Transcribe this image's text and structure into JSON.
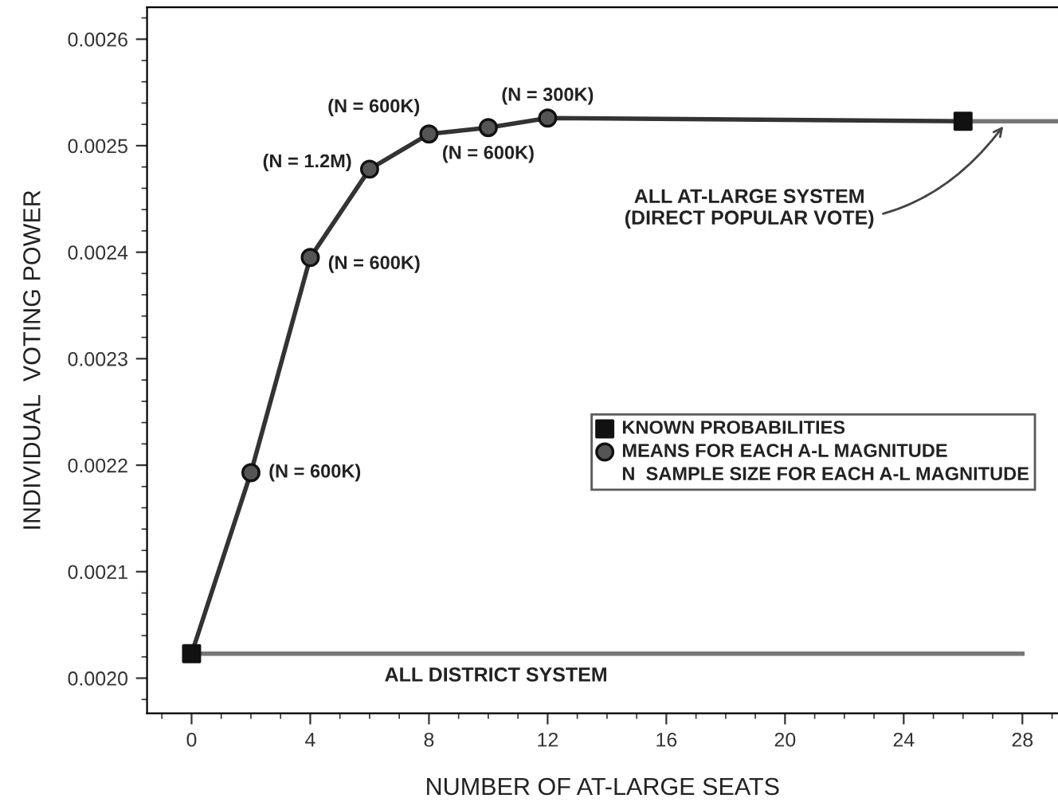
{
  "chart_data": {
    "type": "line",
    "xlabel": "NUMBER OF AT-LARGE SEATS",
    "ylabel": "INDIVIDUAL  VOTING POWER",
    "xlim": [
      -1.5,
      29.2
    ],
    "ylim": [
      0.001967,
      0.00263
    ],
    "xticks": [
      0,
      4,
      8,
      12,
      16,
      20,
      24,
      28
    ],
    "yticks": [
      {
        "value": 0.002,
        "label": "0.0020"
      },
      0.0021,
      0.0022,
      0.0023,
      0.0024,
      0.0025,
      0.0026
    ],
    "grid": false,
    "legend": "right",
    "series": [
      {
        "color": "#333333",
        "marker": "none",
        "x": [
          0,
          2,
          4,
          6,
          8,
          10,
          12,
          26
        ],
        "values": [
          0.002023,
          0.002193,
          0.002395,
          0.002478,
          0.002511,
          0.002517,
          0.002526,
          0.002523
        ]
      },
      {
        "color": "#777777",
        "marker": "none",
        "x": [
          26,
          29.2
        ],
        "values": [
          0.002523,
          0.002523
        ]
      },
      {
        "color": "#777777",
        "marker": "none",
        "x": [
          0,
          28
        ],
        "values": [
          0.002023,
          0.002023
        ]
      },
      {
        "type": "scatter",
        "name": "KNOWN PROBABILITIES",
        "color": "#111111",
        "marker": "square",
        "x": [
          0,
          26
        ],
        "values": [
          0.002023,
          0.002523
        ]
      },
      {
        "type": "scatter",
        "name": "MEANS FOR EACH A-L MAGNITUDE",
        "color": "#555555",
        "marker": "circle",
        "x": [
          2,
          4,
          6,
          8,
          10,
          12
        ],
        "values": [
          0.002193,
          0.002395,
          0.002478,
          0.002511,
          0.002517,
          0.002526
        ]
      }
    ],
    "annotations": [
      "N  SAMPLE SIZE FOR EACH A-L MAGNITUDE",
      {
        "text": "ALL DISTRICT SYSTEM",
        "x": 6.5,
        "y": 0.002023
      },
      {
        "text": "ALL AT-LARGE SYSTEM\n(DIRECT POPULAR VOTE)",
        "x": 27.4,
        "y": 0.002523
      },
      {
        "text": "(N = 600K)",
        "x": 2,
        "y": 0.002193
      },
      {
        "text": "(N = 600K)",
        "x": 4,
        "y": 0.002395
      },
      {
        "text": "(N = 1.2M)",
        "x": 6,
        "y": 0.002478
      },
      {
        "text": "(N = 600K)",
        "x": 8,
        "y": 0.002511
      },
      {
        "text": "(N = 600K)",
        "x": 10,
        "y": 0.002517
      },
      {
        "text": "(N = 300K)",
        "x": 12,
        "y": 0.002526
      }
    ]
  }
}
